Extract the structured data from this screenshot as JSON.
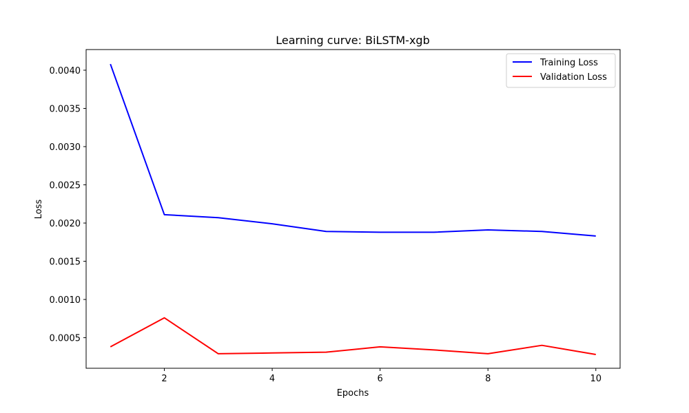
{
  "chart_data": {
    "type": "line",
    "title": "Learning curve: BiLSTM-xgb",
    "xlabel": "Epochs",
    "ylabel": "Loss",
    "x": [
      1,
      2,
      3,
      4,
      5,
      6,
      7,
      8,
      9,
      10
    ],
    "xlim": [
      0.55,
      10.45
    ],
    "ylim": [
      0.0001,
      0.00427
    ],
    "xticks": [
      2,
      4,
      6,
      8,
      10
    ],
    "xtick_labels": [
      "2",
      "4",
      "6",
      "8",
      "10"
    ],
    "yticks": [
      0.0005,
      0.001,
      0.0015,
      0.002,
      0.0025,
      0.003,
      0.0035,
      0.004
    ],
    "ytick_labels": [
      "0.0005",
      "0.0010",
      "0.0015",
      "0.0020",
      "0.0025",
      "0.0030",
      "0.0035",
      "0.0040"
    ],
    "grid": false,
    "legend_position": "top-right",
    "series": [
      {
        "name": "Training Loss",
        "color": "#0000ff",
        "values": [
          0.00408,
          0.00211,
          0.00207,
          0.00199,
          0.00189,
          0.00188,
          0.00188,
          0.00191,
          0.00189,
          0.00183
        ]
      },
      {
        "name": "Validation Loss",
        "color": "#ff0000",
        "values": [
          0.00038,
          0.00076,
          0.00029,
          0.0003,
          0.00031,
          0.00038,
          0.00034,
          0.00029,
          0.0004,
          0.00028
        ]
      }
    ]
  }
}
